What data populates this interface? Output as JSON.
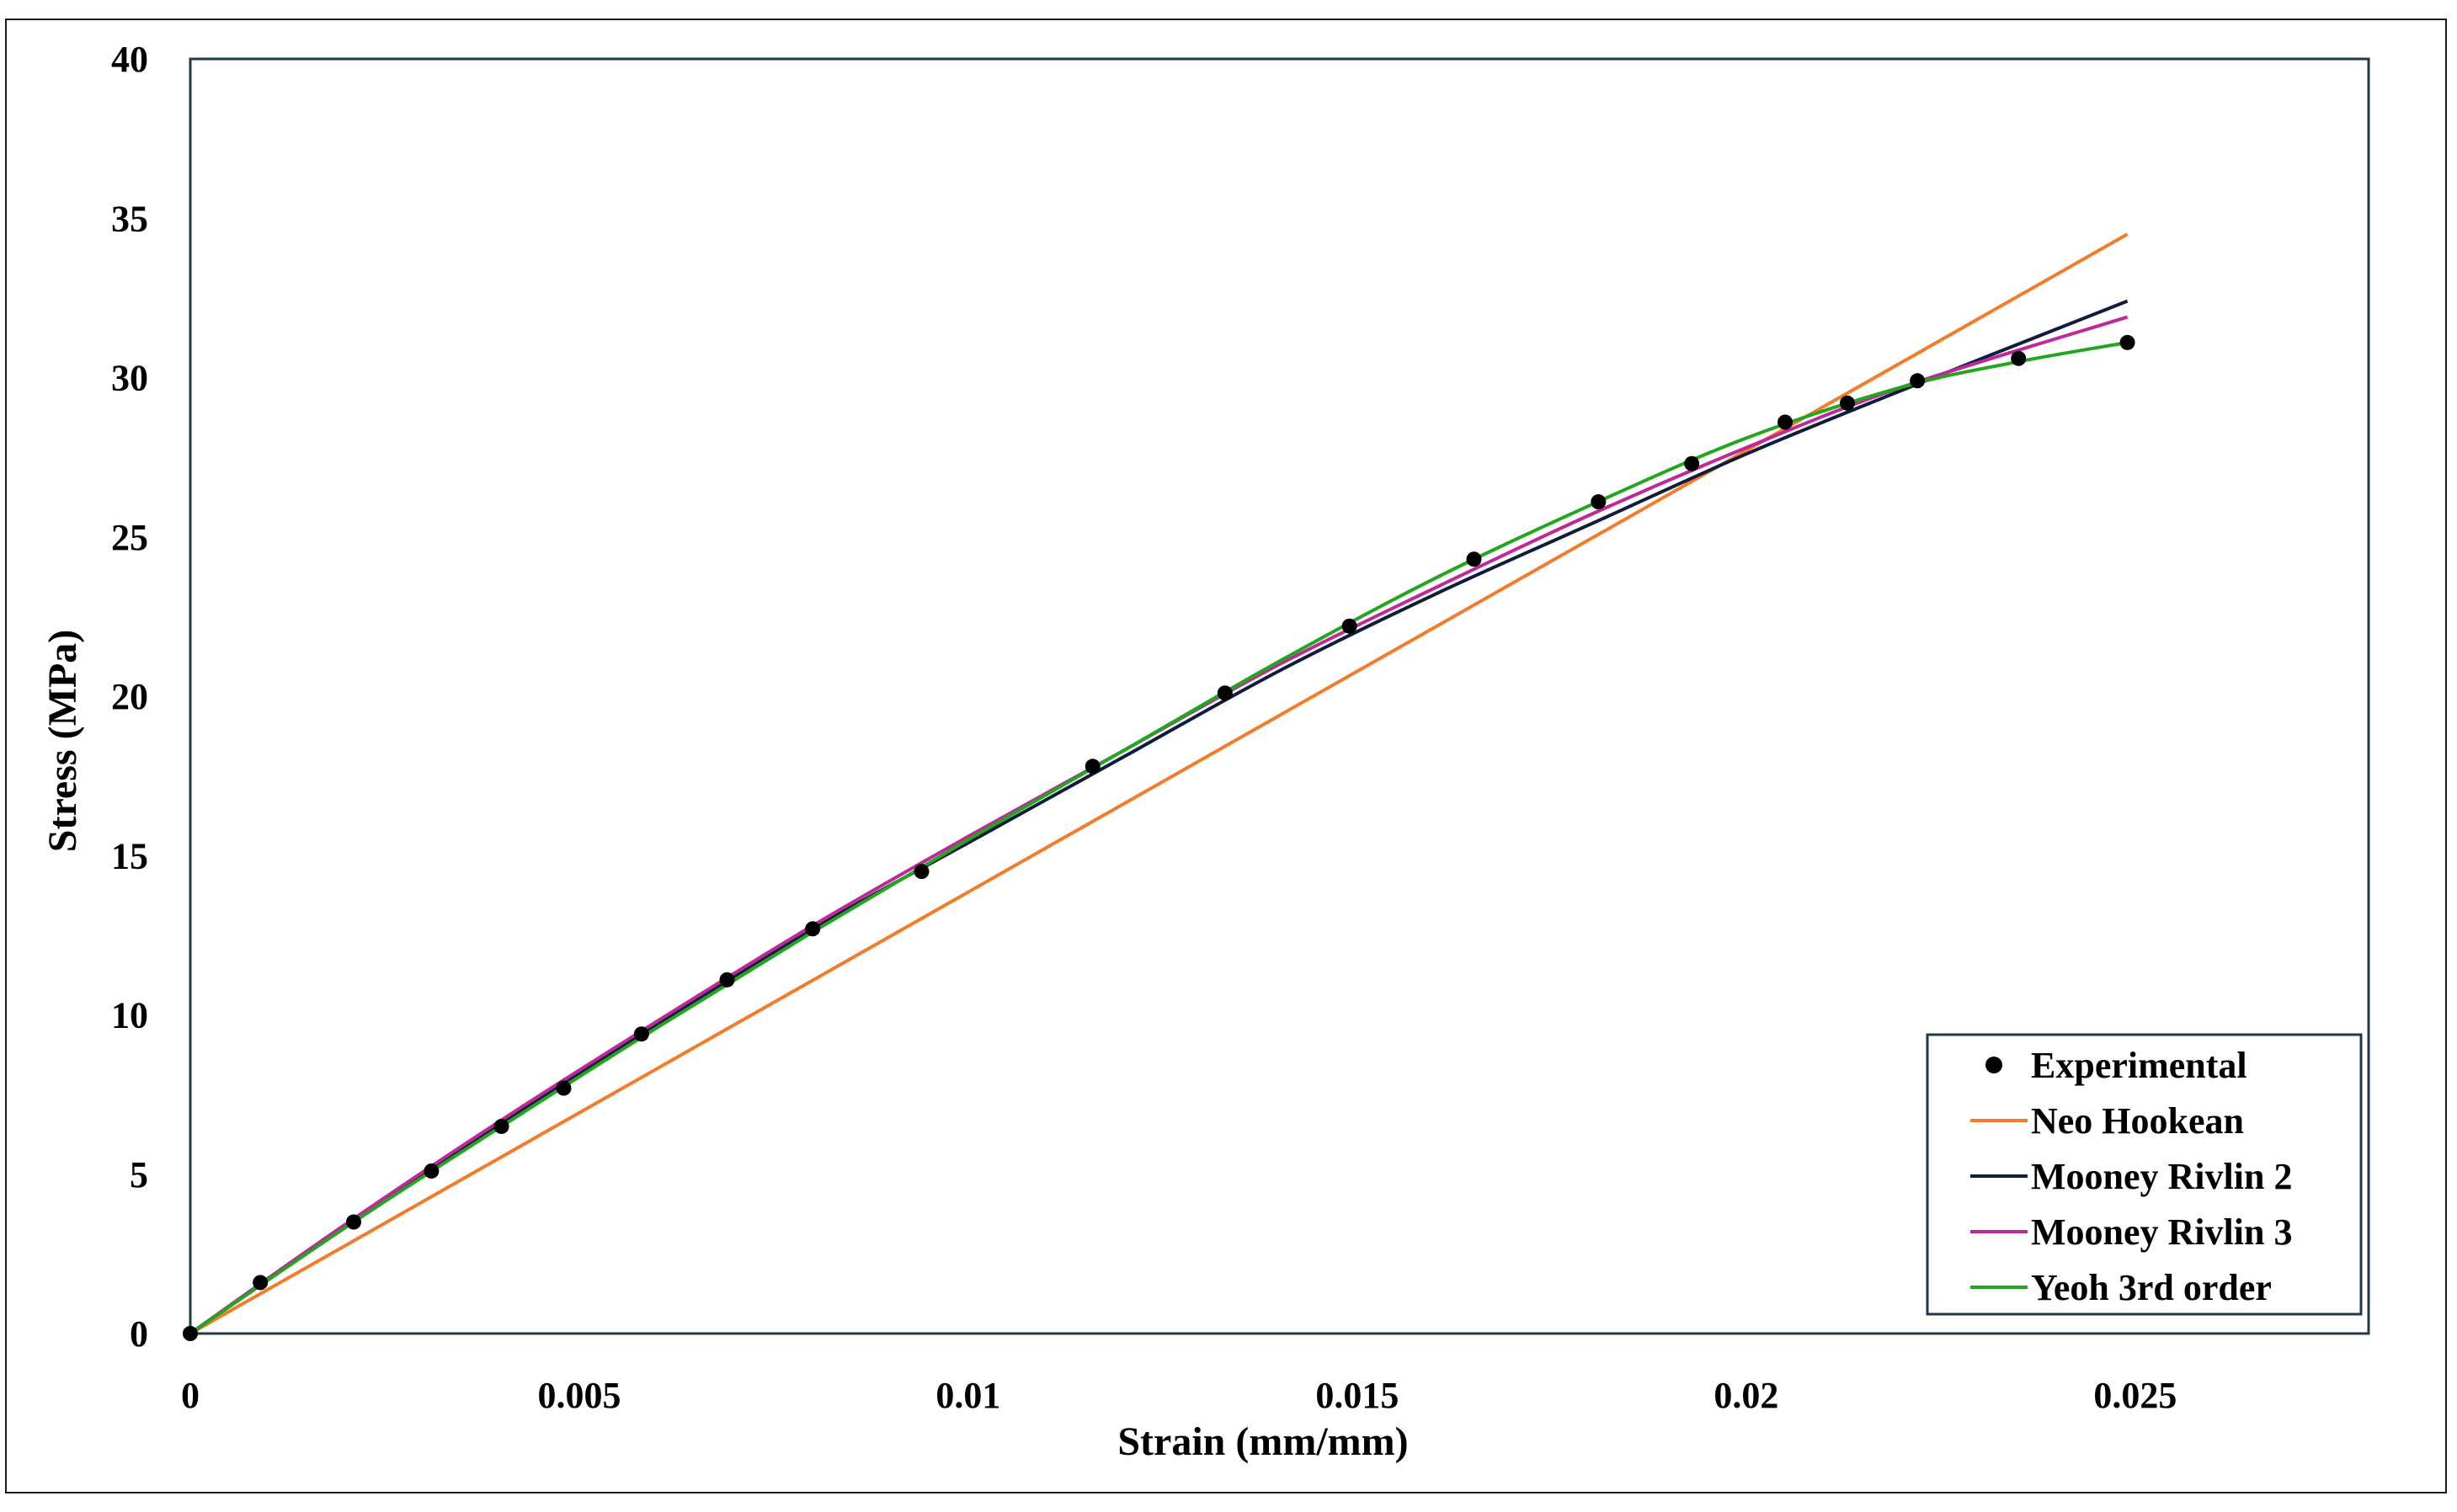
{
  "chart_data": {
    "type": "line",
    "xlabel": "Strain (mm/mm)",
    "ylabel": "Stress (MPa)",
    "xlim": [
      0,
      0.028
    ],
    "ylim": [
      0,
      40
    ],
    "x_ticks": [
      0,
      0.005,
      0.01,
      0.015,
      0.02,
      0.025
    ],
    "x_tick_labels": [
      "0",
      "0.005",
      "0.01",
      "0.015",
      "0.02",
      "0.025"
    ],
    "y_ticks": [
      0,
      5,
      10,
      15,
      20,
      25,
      30,
      35,
      40
    ],
    "y_tick_labels": [
      "0",
      "5",
      "10",
      "15",
      "20",
      "25",
      "30",
      "35",
      "40"
    ],
    "grid": false,
    "legend_position": "bottom-right",
    "series": [
      {
        "name": "Experimental",
        "kind": "scatter",
        "color": "#000000",
        "x": [
          0,
          0.0009,
          0.0021,
          0.0031,
          0.004,
          0.0048,
          0.0058,
          0.0069,
          0.008,
          0.0094,
          0.0116,
          0.0133,
          0.0149,
          0.0165,
          0.0181,
          0.0193,
          0.0205,
          0.0213,
          0.0222,
          0.0235,
          0.0249
        ],
        "y": [
          0,
          1.6,
          3.5,
          5.1,
          6.5,
          7.7,
          9.4,
          11.1,
          12.7,
          14.5,
          17.8,
          20.1,
          22.2,
          24.3,
          26.1,
          27.3,
          28.6,
          29.2,
          29.9,
          30.6,
          31.1
        ]
      },
      {
        "name": "Neo Hookean",
        "kind": "line",
        "color": "#f47b2a",
        "x": [
          0,
          0.0249
        ],
        "y": [
          0,
          34.5
        ]
      },
      {
        "name": "Mooney Rivlin 2",
        "kind": "line",
        "color": "#0f1d3c",
        "x": [
          0,
          0.0021,
          0.004,
          0.006,
          0.008,
          0.01,
          0.012,
          0.014,
          0.016,
          0.018,
          0.02,
          0.022,
          0.0249
        ],
        "y": [
          0,
          3.6,
          6.6,
          9.7,
          12.7,
          15.4,
          18.1,
          20.8,
          23.2,
          25.4,
          27.6,
          29.6,
          32.4
        ]
      },
      {
        "name": "Mooney Rivlin 3",
        "kind": "line",
        "color": "#c0289a",
        "x": [
          0,
          0.0021,
          0.004,
          0.006,
          0.008,
          0.01,
          0.012,
          0.014,
          0.016,
          0.018,
          0.02,
          0.022,
          0.0249
        ],
        "y": [
          0,
          3.6,
          6.7,
          9.8,
          12.8,
          15.6,
          18.3,
          21.0,
          23.4,
          25.7,
          27.8,
          29.7,
          31.9
        ]
      },
      {
        "name": "Yeoh 3rd order",
        "kind": "line",
        "color": "#22a61e",
        "x": [
          0,
          0.0021,
          0.004,
          0.006,
          0.008,
          0.01,
          0.012,
          0.014,
          0.016,
          0.018,
          0.02,
          0.022,
          0.0235,
          0.0249
        ],
        "y": [
          0,
          3.5,
          6.5,
          9.6,
          12.6,
          15.5,
          18.3,
          21.1,
          23.7,
          26.0,
          28.1,
          29.7,
          30.5,
          31.1
        ]
      }
    ]
  }
}
